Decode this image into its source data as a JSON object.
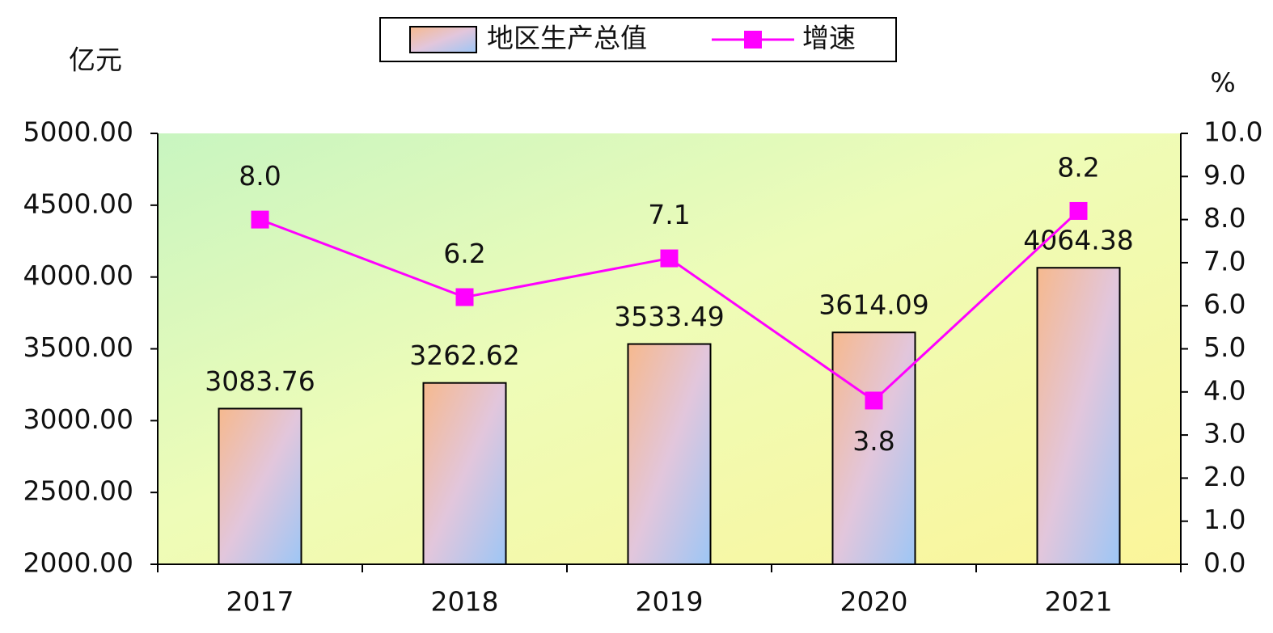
{
  "chart_data": {
    "type": "bar",
    "legend": "top",
    "y_unit": "亿元",
    "y2_unit": "%",
    "categories": [
      "2017",
      "2018",
      "2019",
      "2020",
      "2021"
    ],
    "series": [
      {
        "name": "地区生产总值",
        "type": "bar",
        "values": [
          3083.76,
          3262.62,
          3533.49,
          3614.09,
          4064.38
        ]
      },
      {
        "name": "增速",
        "type": "line",
        "axis": "y2",
        "color": "#ff00ff",
        "values": [
          8.0,
          6.2,
          7.1,
          3.8,
          8.2
        ],
        "value_labels": [
          "8.0",
          "6.2",
          "7.1",
          "3.8",
          "8.2"
        ]
      }
    ],
    "ylim": [
      2000,
      5000
    ],
    "yticks": [
      {
        "value": 2000,
        "label": "2000.00"
      },
      {
        "value": 2500,
        "label": "2500.00"
      },
      {
        "value": 3000,
        "label": "3000.00"
      },
      {
        "value": 3500,
        "label": "3500.00"
      },
      {
        "value": 4000,
        "label": "4000.00"
      },
      {
        "value": 4500,
        "label": "4500.00"
      },
      {
        "value": 5000,
        "label": "5000.00"
      }
    ],
    "y2lim": [
      0,
      10
    ],
    "y2ticks": [
      {
        "value": 0,
        "label": "0.0"
      },
      {
        "value": 1,
        "label": "1.0"
      },
      {
        "value": 2,
        "label": "2.0"
      },
      {
        "value": 3,
        "label": "3.0"
      },
      {
        "value": 4,
        "label": "4.0"
      },
      {
        "value": 5,
        "label": "5.0"
      },
      {
        "value": 6,
        "label": "6.0"
      },
      {
        "value": 7,
        "label": "7.0"
      },
      {
        "value": 8,
        "label": "8.0"
      },
      {
        "value": 9,
        "label": "9.0"
      },
      {
        "value": 10,
        "label": "10.0"
      }
    ]
  }
}
